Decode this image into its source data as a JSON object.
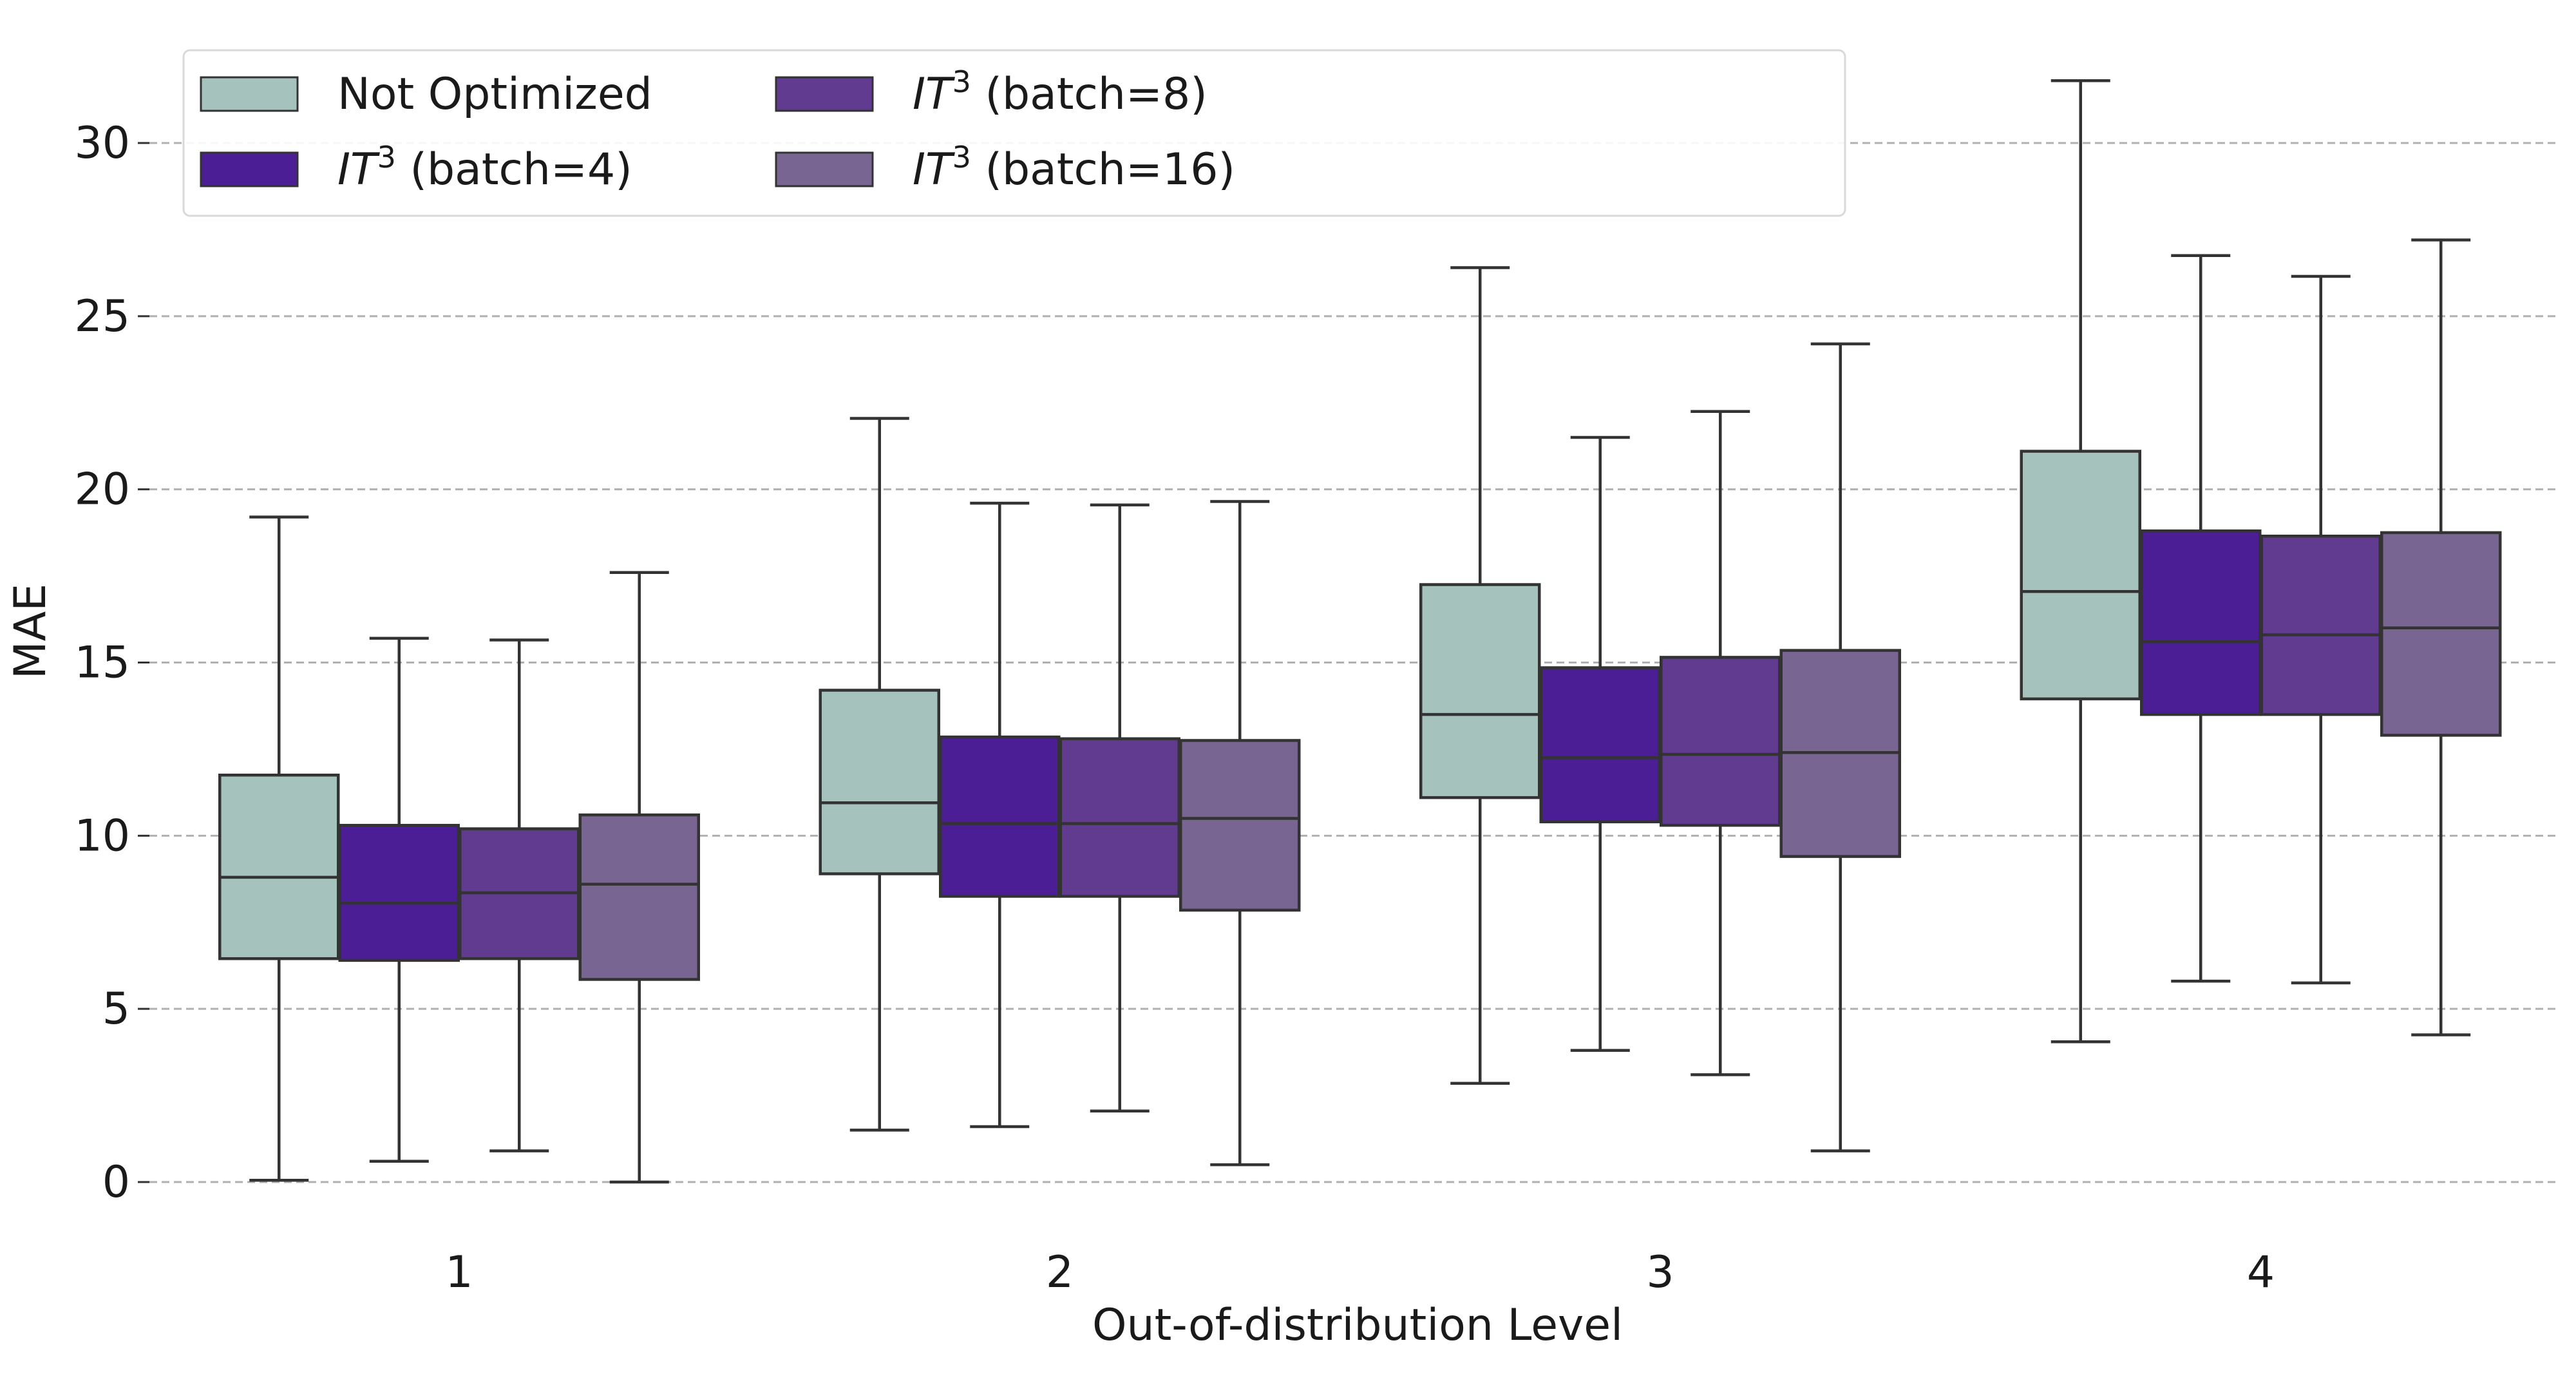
{
  "chart_data": {
    "type": "boxplot",
    "title": "",
    "xlabel": "Out-of-distribution Level",
    "ylabel": "MAE",
    "ylim": [
      0,
      32
    ],
    "yticks": [
      0,
      5,
      10,
      15,
      20,
      25,
      30
    ],
    "ytick_labels": [
      "0",
      "5",
      "10",
      "15",
      "20",
      "25",
      "30"
    ],
    "grid": "horizontal dashed",
    "categories": [
      "1",
      "2",
      "3",
      "4"
    ],
    "legend": {
      "placement": "top-left",
      "entries": [
        {
          "prefix": "",
          "suffix": "Not Optimized"
        },
        {
          "prefix": "IT",
          "sup": "3",
          "suffix": " (batch=4)"
        },
        {
          "prefix": "IT",
          "sup": "3",
          "suffix": " (batch=8)"
        },
        {
          "prefix": "IT",
          "sup": "3",
          "suffix": " (batch=16)"
        }
      ]
    },
    "series": [
      {
        "name": "Not Optimized",
        "color": "#a6c2bd",
        "boxes": [
          {
            "whislo": 0.05,
            "q1": 6.45,
            "med": 8.8,
            "q3": 11.75,
            "whishi": 19.2
          },
          {
            "whislo": 1.5,
            "q1": 8.9,
            "med": 10.95,
            "q3": 14.2,
            "whishi": 22.05
          },
          {
            "whislo": 2.85,
            "q1": 11.1,
            "med": 13.5,
            "q3": 17.25,
            "whishi": 26.4
          },
          {
            "whislo": 4.05,
            "q1": 13.95,
            "med": 17.05,
            "q3": 21.1,
            "whishi": 31.8
          }
        ]
      },
      {
        "name": "IT3 (batch=4)",
        "color": "#4b1e96",
        "boxes": [
          {
            "whislo": 0.6,
            "q1": 6.4,
            "med": 8.05,
            "q3": 10.3,
            "whishi": 15.7
          },
          {
            "whislo": 1.6,
            "q1": 8.25,
            "med": 10.35,
            "q3": 12.85,
            "whishi": 19.6
          },
          {
            "whislo": 3.8,
            "q1": 10.4,
            "med": 12.25,
            "q3": 14.85,
            "whishi": 21.5
          },
          {
            "whislo": 5.8,
            "q1": 13.5,
            "med": 15.6,
            "q3": 18.8,
            "whishi": 26.75
          }
        ]
      },
      {
        "name": "IT3 (batch=8)",
        "color": "#603b8f",
        "boxes": [
          {
            "whislo": 0.9,
            "q1": 6.45,
            "med": 8.35,
            "q3": 10.2,
            "whishi": 15.65
          },
          {
            "whislo": 2.05,
            "q1": 8.25,
            "med": 10.35,
            "q3": 12.8,
            "whishi": 19.55
          },
          {
            "whislo": 3.1,
            "q1": 10.3,
            "med": 12.35,
            "q3": 15.15,
            "whishi": 22.25
          },
          {
            "whislo": 5.75,
            "q1": 13.5,
            "med": 15.8,
            "q3": 18.65,
            "whishi": 26.15
          }
        ]
      },
      {
        "name": "IT3 (batch=16)",
        "color": "#796592",
        "boxes": [
          {
            "whislo": 0.0,
            "q1": 5.85,
            "med": 8.6,
            "q3": 10.6,
            "whishi": 17.6
          },
          {
            "whislo": 0.5,
            "q1": 7.85,
            "med": 10.5,
            "q3": 12.75,
            "whishi": 19.65
          },
          {
            "whislo": 0.9,
            "q1": 9.4,
            "med": 12.4,
            "q3": 15.35,
            "whishi": 24.2
          },
          {
            "whislo": 4.25,
            "q1": 12.9,
            "med": 16.0,
            "q3": 18.75,
            "whishi": 27.2
          }
        ]
      }
    ]
  }
}
